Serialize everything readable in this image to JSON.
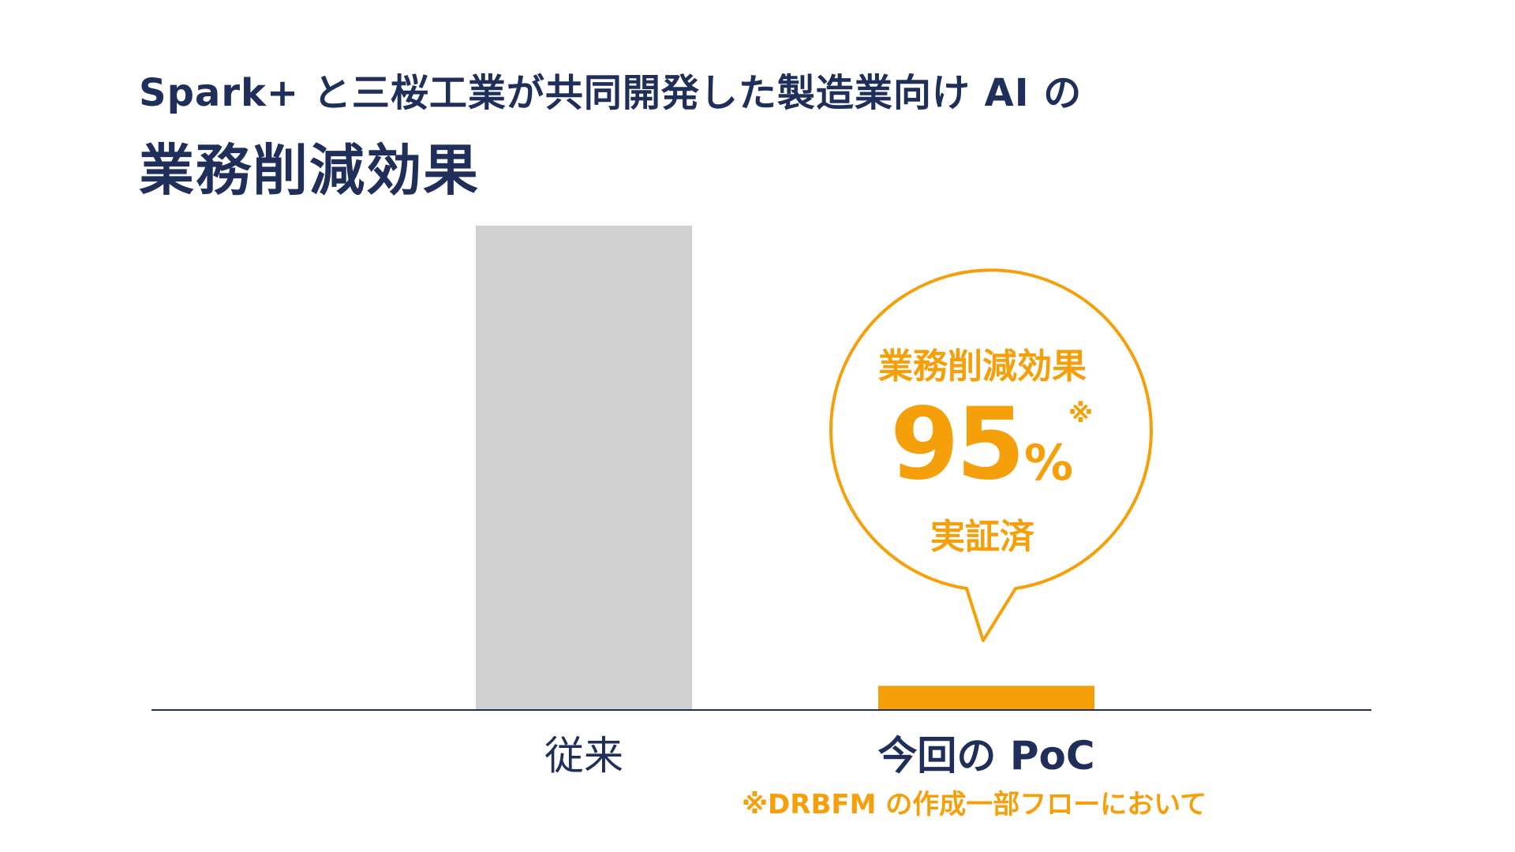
{
  "header": {
    "subtitle": "Spark+ と三桜工業が共同開発した製造業向け AI の",
    "title": "業務削減効果"
  },
  "chart_data": {
    "type": "bar",
    "categories": [
      "従来",
      "今回の PoC"
    ],
    "values": [
      100,
      5
    ],
    "ylim": [
      0,
      100
    ],
    "grid": false,
    "colors": [
      "#d0d0d0",
      "#f5a00a"
    ]
  },
  "callout": {
    "title": "業務削減効果",
    "value": "95",
    "unit": "%",
    "mark": "※",
    "verified": "実証済"
  },
  "footnote": "※DRBFM の作成一部フローにおいて",
  "colors": {
    "navy": "#1f2f5a",
    "accent": "#f5a00a",
    "bar_gray": "#d0d0d0"
  }
}
